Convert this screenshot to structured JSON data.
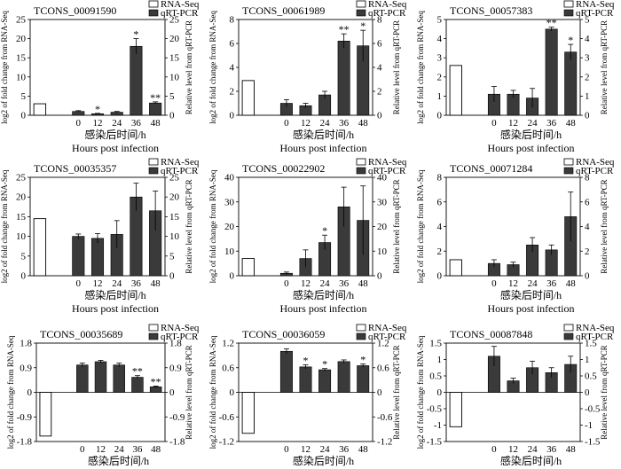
{
  "figure": {
    "legend_labels": [
      "RNA-Seq",
      "qRT-PCR"
    ],
    "xlabel_cn": "感染后时间/h",
    "xlabel_en": "Hours post infection"
  },
  "chart_data": [
    {
      "type": "bar",
      "title": "TCONS_00091590",
      "ylabel_left": "log2 of fold change from RNA-Seq",
      "ylabel_right": "Relative level from qRT-PCR",
      "ylim": [
        0,
        25
      ],
      "yticks": [
        0,
        5,
        10,
        15,
        20,
        25
      ],
      "rna_seq": 3.0,
      "categories": [
        "0",
        "12",
        "24",
        "36",
        "48"
      ],
      "qrt_pcr": [
        1.0,
        0.4,
        0.8,
        18.0,
        3.2
      ],
      "errors": [
        0.2,
        0.1,
        0.2,
        2.0,
        0.3
      ],
      "annotations": [
        "",
        "*",
        "",
        "*",
        "**"
      ]
    },
    {
      "type": "bar",
      "title": "TCONS_00061989",
      "ylabel_left": "log2 of fold change from RNA-Seq",
      "ylabel_right": "Relative level from qRT-PCR",
      "ylim": [
        0,
        8
      ],
      "yticks": [
        0,
        2,
        4,
        6,
        8
      ],
      "rna_seq": 2.9,
      "categories": [
        "0",
        "12",
        "24",
        "36",
        "48"
      ],
      "qrt_pcr": [
        1.0,
        0.8,
        1.7,
        6.2,
        5.8
      ],
      "errors": [
        0.3,
        0.2,
        0.3,
        0.6,
        1.3
      ],
      "annotations": [
        "",
        "",
        "",
        "**",
        "*"
      ]
    },
    {
      "type": "bar",
      "title": "TCONS_00057383",
      "ylabel_left": "log2 of fold change from RNA-Seq",
      "ylabel_right": "Relative level from qRT-PCR",
      "ylim": [
        0,
        5
      ],
      "yticks": [
        0,
        1,
        2,
        3,
        4,
        5
      ],
      "rna_seq": 2.6,
      "categories": [
        "0",
        "12",
        "24",
        "36",
        "48"
      ],
      "qrt_pcr": [
        1.1,
        1.1,
        0.9,
        4.5,
        3.3
      ],
      "errors": [
        0.4,
        0.2,
        0.5,
        0.1,
        0.4
      ],
      "annotations": [
        "",
        "",
        "",
        "**",
        "*"
      ]
    },
    {
      "type": "bar",
      "title": "TCONS_00035357",
      "ylabel_left": "log2 of fold change from RNA-Seq",
      "ylabel_right": "Relative level from qRT-PCR",
      "ylim": [
        0,
        25
      ],
      "yticks": [
        0,
        5,
        10,
        15,
        20,
        25
      ],
      "rna_seq": 14.5,
      "categories": [
        "0",
        "12",
        "24",
        "36",
        "48"
      ],
      "qrt_pcr": [
        10.0,
        9.5,
        10.5,
        20.0,
        16.5
      ],
      "errors": [
        0.6,
        1.2,
        3.5,
        3.5,
        5.0
      ],
      "annotations": [
        "",
        "",
        "",
        "",
        ""
      ]
    },
    {
      "type": "bar",
      "title": "TCONS_00022902",
      "ylabel_left": "log2 of fold change from RNA-Seq",
      "ylabel_right": "Relative level from qRT-PCR",
      "ylim": [
        0,
        40
      ],
      "yticks": [
        0,
        10,
        20,
        30,
        40
      ],
      "rna_seq": 7.0,
      "categories": [
        "0",
        "12",
        "24",
        "36",
        "48"
      ],
      "qrt_pcr": [
        1.0,
        7.0,
        13.5,
        28.0,
        22.5
      ],
      "errors": [
        0.5,
        3.5,
        3.0,
        8.0,
        14.0
      ],
      "annotations": [
        "",
        "",
        "*",
        "",
        ""
      ]
    },
    {
      "type": "bar",
      "title": "TCONS_00071284",
      "ylabel_left": "log2 of fold change from RNA-Seq",
      "ylabel_right": "Relative level from qRT-PCR",
      "ylim": [
        0,
        8
      ],
      "yticks": [
        0,
        2,
        4,
        6,
        8
      ],
      "rna_seq": 1.3,
      "categories": [
        "0",
        "12",
        "24",
        "36",
        "48"
      ],
      "qrt_pcr": [
        1.0,
        0.9,
        2.5,
        2.1,
        4.8
      ],
      "errors": [
        0.3,
        0.2,
        0.6,
        0.4,
        2.0
      ],
      "annotations": [
        "",
        "",
        "",
        "",
        ""
      ]
    },
    {
      "type": "bar",
      "title": "TCONS_00035689",
      "ylabel_left": "log2 of fold change from RNA-Seq",
      "ylabel_right": "Relative level from qRT-PCR",
      "ylim": [
        -1.8,
        1.8
      ],
      "yticks": [
        -1.8,
        -0.9,
        0,
        0.9,
        1.8
      ],
      "rna_seq": -1.6,
      "categories": [
        "0",
        "12",
        "24",
        "36",
        "48"
      ],
      "qrt_pcr": [
        1.0,
        1.12,
        1.0,
        0.55,
        0.2
      ],
      "errors": [
        0.07,
        0.05,
        0.07,
        0.06,
        0.03
      ],
      "annotations": [
        "",
        "",
        "",
        "**",
        "**"
      ]
    },
    {
      "type": "bar",
      "title": "TCONS_00036059",
      "ylabel_left": "log2 of fold change from RNA-Seq",
      "ylabel_right": "Relative level from qRT-PCR",
      "ylim": [
        -1.2,
        1.2
      ],
      "yticks": [
        -1.2,
        -0.6,
        0,
        0.6,
        1.2
      ],
      "rna_seq": -1.0,
      "categories": [
        "0",
        "12",
        "24",
        "36",
        "48"
      ],
      "qrt_pcr": [
        1.0,
        0.62,
        0.55,
        0.75,
        0.65
      ],
      "errors": [
        0.06,
        0.05,
        0.03,
        0.04,
        0.04
      ],
      "annotations": [
        "",
        "*",
        "*",
        "",
        "*"
      ]
    },
    {
      "type": "bar",
      "title": "TCONS_00087848",
      "ylabel_left": "log2 of fold change from RNA-Seq",
      "ylabel_right": "Relative level from qRT-PCR",
      "ylim": [
        -1.5,
        1.5
      ],
      "yticks": [
        -1.5,
        -1.0,
        -0.5,
        0,
        0.5,
        1.0,
        1.5
      ],
      "rna_seq": -1.05,
      "categories": [
        "0",
        "12",
        "24",
        "36",
        "48"
      ],
      "qrt_pcr": [
        1.1,
        0.35,
        0.75,
        0.6,
        0.85
      ],
      "errors": [
        0.3,
        0.08,
        0.2,
        0.15,
        0.25
      ],
      "annotations": [
        "",
        "",
        "",
        "",
        ""
      ]
    }
  ]
}
